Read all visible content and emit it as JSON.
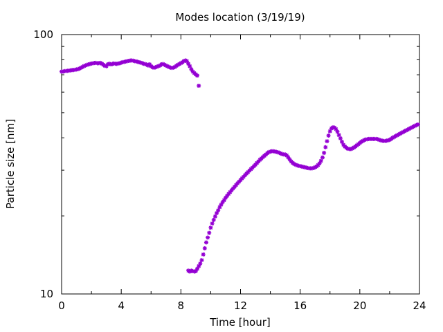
{
  "chart_data": {
    "type": "scatter",
    "title": "Modes location (3/19/19)",
    "xlabel": "Time [hour]",
    "ylabel": "Particle size [nm]",
    "xlim": [
      0,
      24
    ],
    "ylim": [
      10,
      100
    ],
    "yscale": "log",
    "xticks": [
      "0",
      "4",
      "8",
      "12",
      "16",
      "20",
      "24"
    ],
    "yticks": [
      "10",
      "100"
    ],
    "grid": false,
    "legend": "none",
    "marker": "asterisk",
    "color": "#9400D3",
    "series": [
      {
        "points": [
          [
            0.0,
            72
          ],
          [
            0.1,
            72
          ],
          [
            0.2,
            72.3
          ],
          [
            0.3,
            72.4
          ],
          [
            0.4,
            72.5
          ],
          [
            0.5,
            72.6
          ],
          [
            0.6,
            72.8
          ],
          [
            0.7,
            73
          ],
          [
            0.8,
            73
          ],
          [
            0.9,
            73.2
          ],
          [
            1.0,
            73.4
          ],
          [
            1.1,
            73.5
          ],
          [
            1.2,
            74
          ],
          [
            1.3,
            74.5
          ],
          [
            1.4,
            75
          ],
          [
            1.5,
            75.6
          ],
          [
            1.6,
            76
          ],
          [
            1.7,
            76.4
          ],
          [
            1.8,
            76.8
          ],
          [
            1.9,
            77
          ],
          [
            2.0,
            77.3
          ],
          [
            2.1,
            77.5
          ],
          [
            2.2,
            77.7
          ],
          [
            2.3,
            77.8
          ],
          [
            2.4,
            77.5
          ],
          [
            2.5,
            77.6
          ],
          [
            2.6,
            77.8
          ],
          [
            2.7,
            77.2
          ],
          [
            2.8,
            76.5
          ],
          [
            2.9,
            75.8
          ],
          [
            3.0,
            75.5
          ],
          [
            3.1,
            76.8
          ],
          [
            3.2,
            77.2
          ],
          [
            3.3,
            76.8
          ],
          [
            3.4,
            77
          ],
          [
            3.5,
            77.4
          ],
          [
            3.6,
            77.2
          ],
          [
            3.7,
            77.1
          ],
          [
            3.8,
            77.4
          ],
          [
            3.9,
            77.5
          ],
          [
            4.0,
            78
          ],
          [
            4.1,
            78.2
          ],
          [
            4.2,
            78.5
          ],
          [
            4.3,
            78.7
          ],
          [
            4.4,
            79
          ],
          [
            4.5,
            79.2
          ],
          [
            4.6,
            79.4
          ],
          [
            4.7,
            79.5
          ],
          [
            4.8,
            79.3
          ],
          [
            4.9,
            79
          ],
          [
            5.0,
            78.8
          ],
          [
            5.1,
            78.5
          ],
          [
            5.2,
            78.2
          ],
          [
            5.3,
            78
          ],
          [
            5.4,
            77.6
          ],
          [
            5.5,
            77.2
          ],
          [
            5.6,
            77
          ],
          [
            5.7,
            76.6
          ],
          [
            5.8,
            76
          ],
          [
            5.9,
            76.8
          ],
          [
            6.0,
            75.5
          ],
          [
            6.1,
            74.8
          ],
          [
            6.2,
            74.5
          ],
          [
            6.3,
            74.8
          ],
          [
            6.4,
            75.2
          ],
          [
            6.5,
            75.6
          ],
          [
            6.6,
            76
          ],
          [
            6.7,
            76.8
          ],
          [
            6.8,
            77
          ],
          [
            6.9,
            76.5
          ],
          [
            7.0,
            76
          ],
          [
            7.1,
            75.5
          ],
          [
            7.2,
            75
          ],
          [
            7.3,
            74.6
          ],
          [
            7.4,
            74.4
          ],
          [
            7.5,
            74.6
          ],
          [
            7.6,
            75
          ],
          [
            7.7,
            75.8
          ],
          [
            7.8,
            76.5
          ],
          [
            7.9,
            77
          ],
          [
            8.0,
            77.6
          ],
          [
            8.1,
            78.2
          ],
          [
            8.2,
            79
          ],
          [
            8.3,
            79.5
          ],
          [
            8.4,
            79
          ],
          [
            8.5,
            77.2
          ],
          [
            8.6,
            75.5
          ],
          [
            8.7,
            73.5
          ],
          [
            8.8,
            72
          ],
          [
            8.9,
            71
          ],
          [
            9.0,
            70.2
          ],
          [
            9.1,
            69.5
          ],
          [
            9.2,
            63.5
          ],
          [
            8.5,
            12.3
          ],
          [
            8.6,
            12.2
          ],
          [
            8.7,
            12.3
          ],
          [
            8.8,
            12.25
          ],
          [
            8.9,
            12.2
          ],
          [
            9.0,
            12.25
          ],
          [
            9.1,
            12.5
          ],
          [
            9.2,
            12.8
          ],
          [
            9.3,
            13.1
          ],
          [
            9.4,
            13.5
          ],
          [
            9.5,
            14.2
          ],
          [
            9.6,
            15
          ],
          [
            9.7,
            15.8
          ],
          [
            9.8,
            16.5
          ],
          [
            9.9,
            17.2
          ],
          [
            10.0,
            18
          ],
          [
            10.1,
            18.7
          ],
          [
            10.2,
            19.3
          ],
          [
            10.3,
            19.9
          ],
          [
            10.4,
            20.5
          ],
          [
            10.5,
            21
          ],
          [
            10.6,
            21.6
          ],
          [
            10.7,
            22.1
          ],
          [
            10.8,
            22.6
          ],
          [
            10.9,
            23
          ],
          [
            11.0,
            23.5
          ],
          [
            11.1,
            23.9
          ],
          [
            11.2,
            24.3
          ],
          [
            11.3,
            24.7
          ],
          [
            11.4,
            25.1
          ],
          [
            11.5,
            25.5
          ],
          [
            11.6,
            25.9
          ],
          [
            11.7,
            26.3
          ],
          [
            11.8,
            26.7
          ],
          [
            11.9,
            27.1
          ],
          [
            12.0,
            27.5
          ],
          [
            12.1,
            27.9
          ],
          [
            12.2,
            28.3
          ],
          [
            12.3,
            28.7
          ],
          [
            12.4,
            29.1
          ],
          [
            12.5,
            29.5
          ],
          [
            12.6,
            29.9
          ],
          [
            12.7,
            30.3
          ],
          [
            12.8,
            30.7
          ],
          [
            12.9,
            31.1
          ],
          [
            13.0,
            31.5
          ],
          [
            13.1,
            32
          ],
          [
            13.2,
            32.4
          ],
          [
            13.3,
            32.9
          ],
          [
            13.4,
            33.3
          ],
          [
            13.5,
            33.7
          ],
          [
            13.6,
            34.1
          ],
          [
            13.7,
            34.5
          ],
          [
            13.8,
            34.9
          ],
          [
            13.9,
            35.2
          ],
          [
            14.0,
            35.4
          ],
          [
            14.1,
            35.5
          ],
          [
            14.2,
            35.5
          ],
          [
            14.3,
            35.4
          ],
          [
            14.4,
            35.3
          ],
          [
            14.5,
            35.2
          ],
          [
            14.6,
            35
          ],
          [
            14.7,
            34.8
          ],
          [
            14.8,
            34.6
          ],
          [
            14.9,
            34.5
          ],
          [
            15.0,
            34.5
          ],
          [
            15.1,
            34.2
          ],
          [
            15.2,
            33.6
          ],
          [
            15.3,
            33
          ],
          [
            15.4,
            32.4
          ],
          [
            15.5,
            32
          ],
          [
            15.6,
            31.7
          ],
          [
            15.7,
            31.5
          ],
          [
            15.8,
            31.3
          ],
          [
            15.9,
            31.2
          ],
          [
            16.0,
            31.1
          ],
          [
            16.1,
            31
          ],
          [
            16.2,
            30.9
          ],
          [
            16.3,
            30.8
          ],
          [
            16.4,
            30.7
          ],
          [
            16.5,
            30.6
          ],
          [
            16.6,
            30.5
          ],
          [
            16.7,
            30.5
          ],
          [
            16.8,
            30.5
          ],
          [
            16.9,
            30.6
          ],
          [
            17.0,
            30.8
          ],
          [
            17.1,
            31
          ],
          [
            17.2,
            31.4
          ],
          [
            17.3,
            31.9
          ],
          [
            17.4,
            32.6
          ],
          [
            17.5,
            33.6
          ],
          [
            17.6,
            35
          ],
          [
            17.7,
            36.8
          ],
          [
            17.8,
            38.8
          ],
          [
            17.9,
            40.8
          ],
          [
            18.0,
            42.4
          ],
          [
            18.1,
            43.5
          ],
          [
            18.2,
            43.9
          ],
          [
            18.3,
            43.8
          ],
          [
            18.4,
            43.2
          ],
          [
            18.5,
            42.2
          ],
          [
            18.6,
            41
          ],
          [
            18.7,
            39.8
          ],
          [
            18.8,
            38.6
          ],
          [
            18.9,
            37.6
          ],
          [
            19.0,
            37
          ],
          [
            19.1,
            36.6
          ],
          [
            19.2,
            36.3
          ],
          [
            19.3,
            36.2
          ],
          [
            19.4,
            36.2
          ],
          [
            19.5,
            36.4
          ],
          [
            19.6,
            36.7
          ],
          [
            19.7,
            37
          ],
          [
            19.8,
            37.4
          ],
          [
            19.9,
            37.8
          ],
          [
            20.0,
            38.2
          ],
          [
            20.1,
            38.6
          ],
          [
            20.2,
            38.9
          ],
          [
            20.3,
            39.2
          ],
          [
            20.4,
            39.4
          ],
          [
            20.5,
            39.5
          ],
          [
            20.6,
            39.6
          ],
          [
            20.7,
            39.6
          ],
          [
            20.8,
            39.6
          ],
          [
            20.9,
            39.6
          ],
          [
            21.0,
            39.6
          ],
          [
            21.1,
            39.6
          ],
          [
            21.2,
            39.5
          ],
          [
            21.3,
            39.3
          ],
          [
            21.4,
            39.1
          ],
          [
            21.5,
            39
          ],
          [
            21.6,
            38.9
          ],
          [
            21.7,
            38.9
          ],
          [
            21.8,
            39
          ],
          [
            21.9,
            39.1
          ],
          [
            22.0,
            39.3
          ],
          [
            22.1,
            39.6
          ],
          [
            22.2,
            40
          ],
          [
            22.3,
            40.3
          ],
          [
            22.4,
            40.6
          ],
          [
            22.5,
            40.9
          ],
          [
            22.6,
            41.2
          ],
          [
            22.7,
            41.5
          ],
          [
            22.8,
            41.8
          ],
          [
            22.9,
            42.1
          ],
          [
            23.0,
            42.4
          ],
          [
            23.1,
            42.7
          ],
          [
            23.2,
            43
          ],
          [
            23.3,
            43.3
          ],
          [
            23.4,
            43.6
          ],
          [
            23.5,
            43.9
          ],
          [
            23.6,
            44.2
          ],
          [
            23.7,
            44.5
          ],
          [
            23.8,
            44.8
          ],
          [
            23.9,
            45
          ]
        ]
      }
    ]
  }
}
